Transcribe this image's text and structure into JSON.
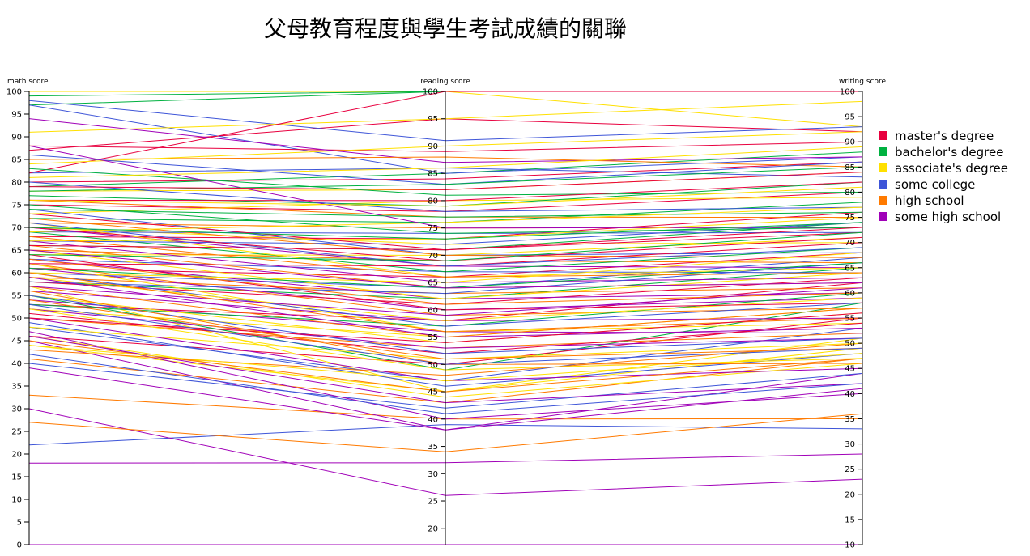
{
  "title": "父母教育程度與學生考試成績的關聯",
  "chart_data": {
    "type": "parallel-coordinates",
    "title": "父母教育程度與學生考試成績的關聯",
    "axes": [
      {
        "name": "math score",
        "range": [
          0,
          100
        ],
        "ticks": [
          0,
          5,
          10,
          15,
          20,
          25,
          30,
          35,
          40,
          45,
          50,
          55,
          60,
          65,
          70,
          75,
          80,
          85,
          90,
          95,
          100
        ]
      },
      {
        "name": "reading score",
        "range": [
          17,
          100
        ],
        "ticks": [
          20,
          25,
          30,
          35,
          40,
          45,
          50,
          55,
          60,
          65,
          70,
          75,
          80,
          85,
          90,
          95,
          100
        ]
      },
      {
        "name": "writing score",
        "range": [
          10,
          100
        ],
        "ticks": [
          10,
          15,
          20,
          25,
          30,
          35,
          40,
          45,
          50,
          55,
          60,
          65,
          70,
          75,
          80,
          85,
          90,
          95,
          100
        ]
      }
    ],
    "legend": [
      {
        "label": "master's degree",
        "color": "#e8003f"
      },
      {
        "label": "bachelor's degree",
        "color": "#00b140"
      },
      {
        "label": "associate's degree",
        "color": "#ffe000"
      },
      {
        "label": "some college",
        "color": "#3e55d8"
      },
      {
        "label": "high school",
        "color": "#ff7a00"
      },
      {
        "label": "some high school",
        "color": "#a000b8"
      }
    ],
    "legend_position": "right",
    "records": [
      {
        "group": 3,
        "values": [
          22,
          39,
          33
        ]
      },
      {
        "group": 5,
        "values": [
          18,
          32,
          28
        ]
      },
      {
        "group": 5,
        "values": [
          30,
          26,
          23
        ]
      },
      {
        "group": 4,
        "values": [
          27,
          34,
          36
        ]
      },
      {
        "group": 4,
        "values": [
          33,
          40,
          35
        ]
      },
      {
        "group": 5,
        "values": [
          0,
          17,
          10
        ]
      },
      {
        "group": 5,
        "values": [
          39,
          38,
          41
        ]
      },
      {
        "group": 5,
        "values": [
          45,
          38,
          44
        ]
      },
      {
        "group": 3,
        "values": [
          40,
          42,
          44
        ]
      },
      {
        "group": 4,
        "values": [
          41,
          43,
          47
        ]
      },
      {
        "group": 2,
        "values": [
          44,
          45,
          49
        ]
      },
      {
        "group": 0,
        "values": [
          53,
          58,
          62
        ]
      },
      {
        "group": 1,
        "values": [
          55,
          49,
          58
        ]
      },
      {
        "group": 2,
        "values": [
          57,
          45,
          51
        ]
      },
      {
        "group": 0,
        "values": [
          46,
          50,
          55
        ]
      },
      {
        "group": 3,
        "values": [
          48,
          47,
          53
        ]
      },
      {
        "group": 4,
        "values": [
          50,
          53,
          52
        ]
      },
      {
        "group": 5,
        "values": [
          47,
          40,
          40
        ]
      },
      {
        "group": 2,
        "values": [
          52,
          55,
          57
        ]
      },
      {
        "group": 1,
        "values": [
          58,
          62,
          65
        ]
      },
      {
        "group": 3,
        "values": [
          60,
          64,
          67
        ]
      },
      {
        "group": 4,
        "values": [
          62,
          59,
          57
        ]
      },
      {
        "group": 5,
        "values": [
          56,
          58,
          55
        ]
      },
      {
        "group": 0,
        "values": [
          61,
          66,
          68
        ]
      },
      {
        "group": 2,
        "values": [
          64,
          70,
          71
        ]
      },
      {
        "group": 1,
        "values": [
          66,
          71,
          74
        ]
      },
      {
        "group": 3,
        "values": [
          63,
          67,
          64
        ]
      },
      {
        "group": 4,
        "values": [
          59,
          63,
          61
        ]
      },
      {
        "group": 5,
        "values": [
          54,
          56,
          52
        ]
      },
      {
        "group": 0,
        "values": [
          68,
          73,
          76
        ]
      },
      {
        "group": 2,
        "values": [
          70,
          72,
          70
        ]
      },
      {
        "group": 1,
        "values": [
          72,
          76,
          78
        ]
      },
      {
        "group": 3,
        "values": [
          69,
          74,
          72
        ]
      },
      {
        "group": 4,
        "values": [
          65,
          69,
          66
        ]
      },
      {
        "group": 5,
        "values": [
          61,
          60,
          59
        ]
      },
      {
        "group": 0,
        "values": [
          75,
          78,
          80
        ]
      },
      {
        "group": 2,
        "values": [
          73,
          80,
          79
        ]
      },
      {
        "group": 1,
        "values": [
          77,
          79,
          82
        ]
      },
      {
        "group": 3,
        "values": [
          74,
          70,
          68
        ]
      },
      {
        "group": 4,
        "values": [
          71,
          75,
          73
        ]
      },
      {
        "group": 5,
        "values": [
          67,
          65,
          63
        ]
      },
      {
        "group": 0,
        "values": [
          80,
          84,
          86
        ]
      },
      {
        "group": 2,
        "values": [
          78,
          82,
          84
        ]
      },
      {
        "group": 1,
        "values": [
          79,
          85,
          88
        ]
      },
      {
        "group": 3,
        "values": [
          82,
          86,
          83
        ]
      },
      {
        "group": 4,
        "values": [
          76,
          77,
          75
        ]
      },
      {
        "group": 5,
        "values": [
          70,
          68,
          65
        ]
      },
      {
        "group": 0,
        "values": [
          87,
          95,
          92
        ]
      },
      {
        "group": 2,
        "values": [
          100,
          100,
          93
        ]
      },
      {
        "group": 1,
        "values": [
          99,
          100,
          100
        ]
      },
      {
        "group": 3,
        "values": [
          98,
          91,
          93
        ]
      },
      {
        "group": 1,
        "values": [
          97,
          100,
          100
        ]
      },
      {
        "group": 3,
        "values": [
          97,
          85,
          87
        ]
      },
      {
        "group": 0,
        "values": [
          88,
          89,
          90
        ]
      },
      {
        "group": 2,
        "values": [
          91,
          95,
          98
        ]
      },
      {
        "group": 5,
        "values": [
          94,
          87,
          87
        ]
      },
      {
        "group": 0,
        "values": [
          82,
          100,
          100
        ]
      },
      {
        "group": 4,
        "values": [
          85,
          88,
          85
        ]
      },
      {
        "group": 2,
        "values": [
          84,
          90,
          92
        ]
      },
      {
        "group": 3,
        "values": [
          86,
          83,
          86
        ]
      },
      {
        "group": 1,
        "values": [
          83,
          81,
          80
        ]
      },
      {
        "group": 5,
        "values": [
          88,
          75,
          73
        ]
      },
      {
        "group": 2,
        "values": [
          62,
          56,
          54
        ]
      },
      {
        "group": 4,
        "values": [
          57,
          55,
          57
        ]
      },
      {
        "group": 0,
        "values": [
          51,
          52,
          54
        ]
      },
      {
        "group": 3,
        "values": [
          49,
          46,
          48
        ]
      },
      {
        "group": 2,
        "values": [
          46,
          44,
          46
        ]
      },
      {
        "group": 4,
        "values": [
          43,
          48,
          50
        ]
      },
      {
        "group": 1,
        "values": [
          53,
          57,
          60
        ]
      },
      {
        "group": 5,
        "values": [
          52,
          53,
          51
        ]
      },
      {
        "group": 0,
        "values": [
          58,
          61,
          63
        ]
      },
      {
        "group": 2,
        "values": [
          55,
          54,
          56
        ]
      },
      {
        "group": 3,
        "values": [
          60,
          57,
          58
        ]
      },
      {
        "group": 4,
        "values": [
          66,
          64,
          62
        ]
      },
      {
        "group": 1,
        "values": [
          69,
          67,
          69
        ]
      },
      {
        "group": 2,
        "values": [
          71,
          66,
          65
        ]
      },
      {
        "group": 0,
        "values": [
          73,
          71,
          72
        ]
      },
      {
        "group": 5,
        "values": [
          63,
          62,
          60
        ]
      },
      {
        "group": 3,
        "values": [
          67,
          72,
          74
        ]
      },
      {
        "group": 4,
        "values": [
          72,
          70,
          67
        ]
      },
      {
        "group": 2,
        "values": [
          65,
          62,
          64
        ]
      },
      {
        "group": 1,
        "values": [
          74,
          77,
          76
        ]
      },
      {
        "group": 0,
        "values": [
          62,
          68,
          70
        ]
      },
      {
        "group": 5,
        "values": [
          50,
          47,
          45
        ]
      },
      {
        "group": 2,
        "values": [
          48,
          51,
          50
        ]
      },
      {
        "group": 4,
        "values": [
          45,
          45,
          47
        ]
      },
      {
        "group": 3,
        "values": [
          58,
          63,
          66
        ]
      },
      {
        "group": 0,
        "values": [
          76,
          80,
          82
        ]
      },
      {
        "group": 2,
        "values": [
          59,
          58,
          59
        ]
      },
      {
        "group": 1,
        "values": [
          61,
          64,
          66
        ]
      },
      {
        "group": 4,
        "values": [
          54,
          51,
          49
        ]
      },
      {
        "group": 5,
        "values": [
          59,
          55,
          53
        ]
      },
      {
        "group": 2,
        "values": [
          67,
          73,
          75
        ]
      },
      {
        "group": 3,
        "values": [
          71,
          68,
          69
        ]
      },
      {
        "group": 0,
        "values": [
          64,
          60,
          58
        ]
      },
      {
        "group": 4,
        "values": [
          68,
          66,
          64
        ]
      },
      {
        "group": 1,
        "values": [
          75,
          74,
          73
        ]
      },
      {
        "group": 2,
        "values": [
          52,
          49,
          47
        ]
      },
      {
        "group": 5,
        "values": [
          46,
          43,
          42
        ]
      },
      {
        "group": 3,
        "values": [
          55,
          52,
          51
        ]
      },
      {
        "group": 0,
        "values": [
          70,
          69,
          71
        ]
      },
      {
        "group": 2,
        "values": [
          60,
          65,
          68
        ]
      },
      {
        "group": 4,
        "values": [
          63,
          61,
          60
        ]
      },
      {
        "group": 1,
        "values": [
          78,
          83,
          85
        ]
      },
      {
        "group": 3,
        "values": [
          80,
          78,
          77
        ]
      },
      {
        "group": 2,
        "values": [
          81,
          86,
          89
        ]
      },
      {
        "group": 0,
        "values": [
          79,
          82,
          84
        ]
      },
      {
        "group": 5,
        "values": [
          57,
          59,
          61
        ]
      },
      {
        "group": 4,
        "values": [
          60,
          56,
          55
        ]
      },
      {
        "group": 2,
        "values": [
          44,
          47,
          48
        ]
      },
      {
        "group": 3,
        "values": [
          42,
          41,
          42
        ]
      },
      {
        "group": 0,
        "values": [
          50,
          54,
          56
        ]
      },
      {
        "group": 1,
        "values": [
          64,
          69,
          72
        ]
      },
      {
        "group": 2,
        "values": [
          69,
          76,
          77
        ]
      },
      {
        "group": 5,
        "values": [
          65,
          64,
          62
        ]
      },
      {
        "group": 4,
        "values": [
          56,
          50,
          46
        ]
      },
      {
        "group": 3,
        "values": [
          53,
          50,
          49
        ]
      },
      {
        "group": 0,
        "values": [
          66,
          71,
          73
        ]
      },
      {
        "group": 2,
        "values": [
          76,
          79,
          81
        ]
      },
      {
        "group": 1,
        "values": [
          70,
          73,
          74
        ]
      }
    ]
  }
}
